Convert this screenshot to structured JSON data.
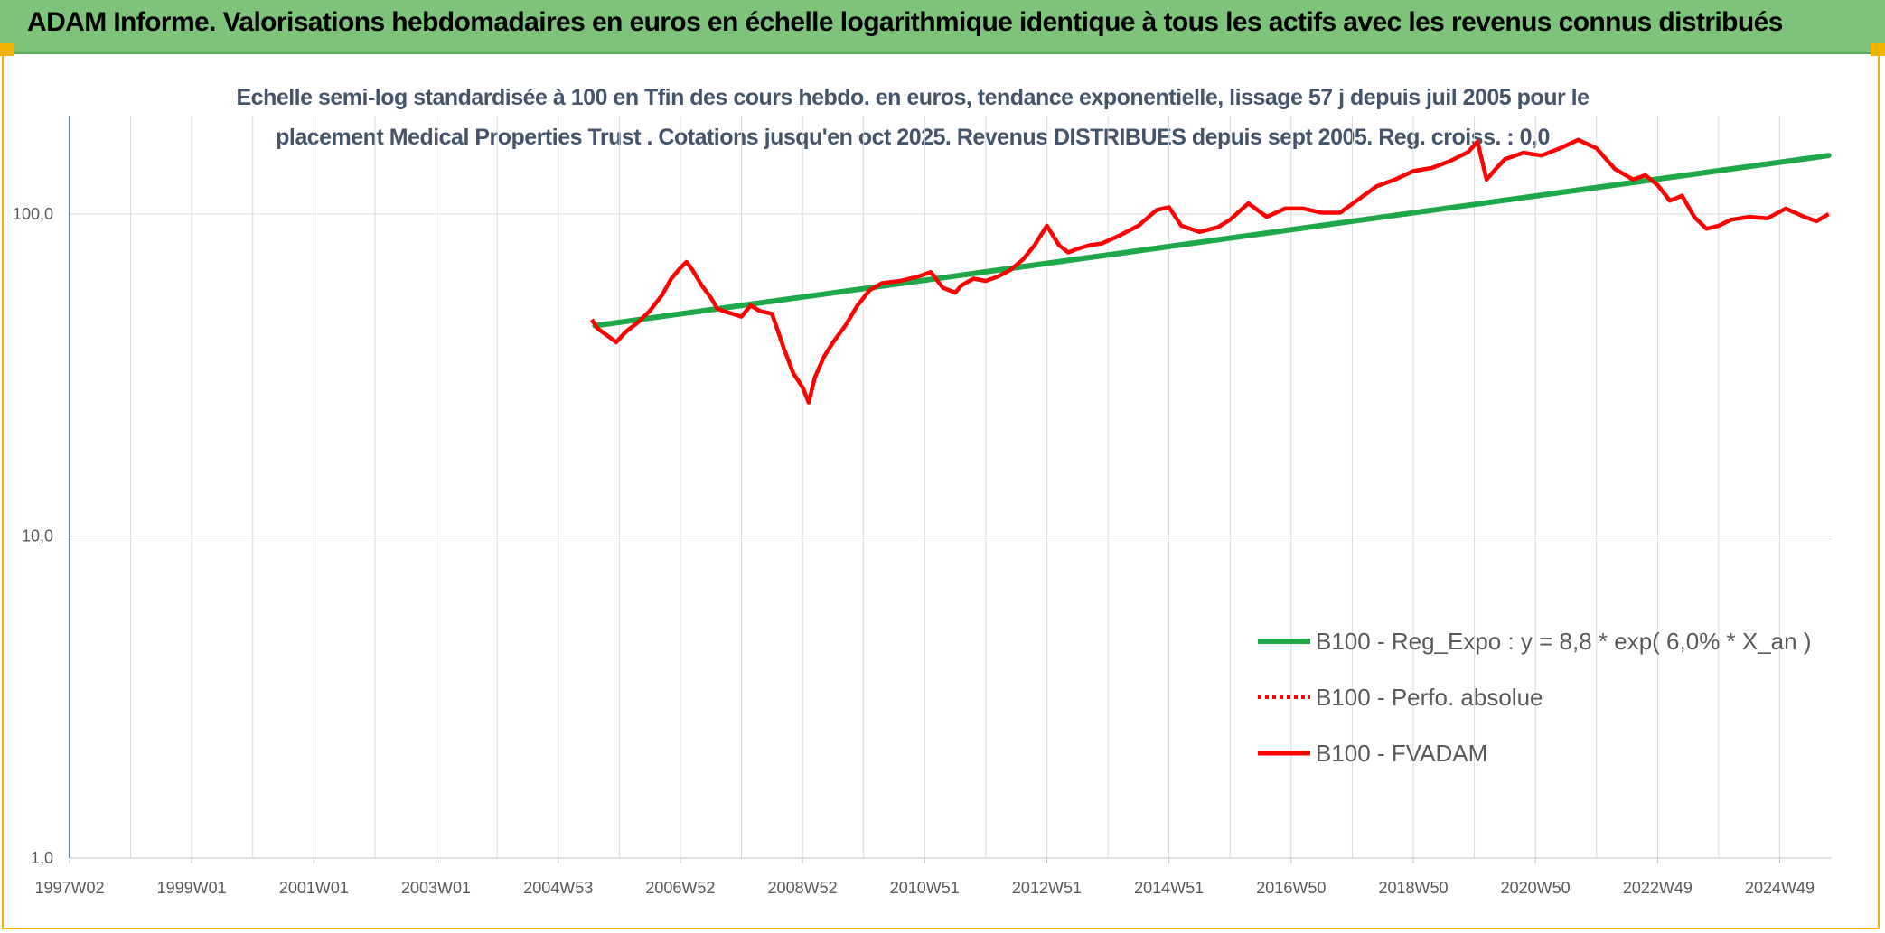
{
  "header": {
    "title": "ADAM Informe. Valorisations hebdomadaires en euros en échelle logarithmique identique à tous les actifs avec les revenus connus distribués"
  },
  "colors": {
    "header_bg": "#7dc47a",
    "frame": "#f0b400",
    "trend": "#1fa84a",
    "series": "#ff0000",
    "grid": "#d9d9d9",
    "axis": "#2f5597"
  },
  "chart_data": {
    "type": "line",
    "title_line1": "Echelle semi-log standardisée à 100 en Tfin des cours hebdo. en euros, tendance exponentielle, lissage 57 j depuis juil 2005 pour le",
    "title_line2": "placement Medical Properties Trust . Cotations jusqu'en oct 2025. Revenus DISTRIBUES depuis sept 2005. Reg. croiss. : 0,0",
    "y_scale": "log",
    "ylim": [
      1,
      200
    ],
    "y_ticks": [
      {
        "value": 1,
        "label": "1,0"
      },
      {
        "value": 10,
        "label": "10,0"
      },
      {
        "value": 100,
        "label": "100,0"
      }
    ],
    "xlim": [
      1997.0,
      2025.85
    ],
    "x_ticks": [
      {
        "year": 1997.0,
        "label": "1997W02"
      },
      {
        "year": 1999.0,
        "label": "1999W01"
      },
      {
        "year": 2001.0,
        "label": "2001W01"
      },
      {
        "year": 2003.0,
        "label": "2003W01"
      },
      {
        "year": 2005.0,
        "label": "2004W53"
      },
      {
        "year": 2007.0,
        "label": "2006W52"
      },
      {
        "year": 2009.0,
        "label": "2008W52"
      },
      {
        "year": 2011.0,
        "label": "2010W51"
      },
      {
        "year": 2013.0,
        "label": "2012W51"
      },
      {
        "year": 2015.0,
        "label": "2014W51"
      },
      {
        "year": 2017.0,
        "label": "2016W50"
      },
      {
        "year": 2019.0,
        "label": "2018W50"
      },
      {
        "year": 2021.0,
        "label": "2020W50"
      },
      {
        "year": 2023.0,
        "label": "2022W49"
      },
      {
        "year": 2025.0,
        "label": "2024W49"
      }
    ],
    "grid": true,
    "legend_position": "bottom-right",
    "series": [
      {
        "name": "B100 - Reg_Expo : y = 8,8 * exp( 6,0% *  X_an )",
        "style": "solid-green",
        "x": [
          2005.6,
          2025.8
        ],
        "y": [
          45,
          152
        ]
      },
      {
        "name": "B100 - Perfo. absolue",
        "style": "dotted-red",
        "x": [],
        "y": []
      },
      {
        "name": "B100 - FVADAM",
        "style": "solid-red",
        "x": [
          2005.55,
          2005.65,
          2005.8,
          2005.95,
          2006.1,
          2006.3,
          2006.5,
          2006.7,
          2006.85,
          2007.0,
          2007.1,
          2007.2,
          2007.35,
          2007.5,
          2007.6,
          2007.7,
          2007.85,
          2008.0,
          2008.15,
          2008.3,
          2008.5,
          2008.7,
          2008.85,
          2009.0,
          2009.1,
          2009.2,
          2009.35,
          2009.5,
          2009.7,
          2009.9,
          2010.1,
          2010.3,
          2010.6,
          2010.9,
          2011.1,
          2011.3,
          2011.5,
          2011.6,
          2011.8,
          2012.0,
          2012.2,
          2012.4,
          2012.6,
          2012.8,
          2013.0,
          2013.2,
          2013.35,
          2013.5,
          2013.7,
          2013.9,
          2014.2,
          2014.5,
          2014.8,
          2015.0,
          2015.2,
          2015.5,
          2015.8,
          2016.0,
          2016.3,
          2016.6,
          2016.9,
          2017.2,
          2017.5,
          2017.8,
          2018.1,
          2018.4,
          2018.7,
          2019.0,
          2019.3,
          2019.6,
          2019.9,
          2020.05,
          2020.2,
          2020.35,
          2020.5,
          2020.8,
          2021.1,
          2021.4,
          2021.7,
          2022.0,
          2022.3,
          2022.6,
          2022.8,
          2023.0,
          2023.2,
          2023.4,
          2023.6,
          2023.8,
          2024.0,
          2024.2,
          2024.5,
          2024.8,
          2025.1,
          2025.4,
          2025.6,
          2025.8
        ],
        "y": [
          47,
          44,
          42,
          40,
          43,
          46,
          50,
          56,
          63,
          68,
          71,
          67,
          60,
          55,
          51,
          50,
          49,
          48,
          52,
          50,
          49,
          38,
          32,
          29,
          26,
          31,
          36,
          40,
          45,
          52,
          58,
          61,
          62,
          64,
          66,
          59,
          57,
          60,
          63,
          62,
          64,
          67,
          72,
          80,
          92,
          80,
          76,
          78,
          80,
          81,
          86,
          92,
          103,
          105,
          92,
          88,
          91,
          96,
          108,
          98,
          104,
          104,
          101,
          101,
          111,
          122,
          128,
          136,
          139,
          146,
          156,
          168,
          128,
          138,
          148,
          155,
          152,
          160,
          170,
          160,
          138,
          128,
          132,
          123,
          110,
          114,
          98,
          90,
          92,
          96,
          98,
          97,
          104,
          98,
          95,
          100
        ]
      }
    ]
  }
}
